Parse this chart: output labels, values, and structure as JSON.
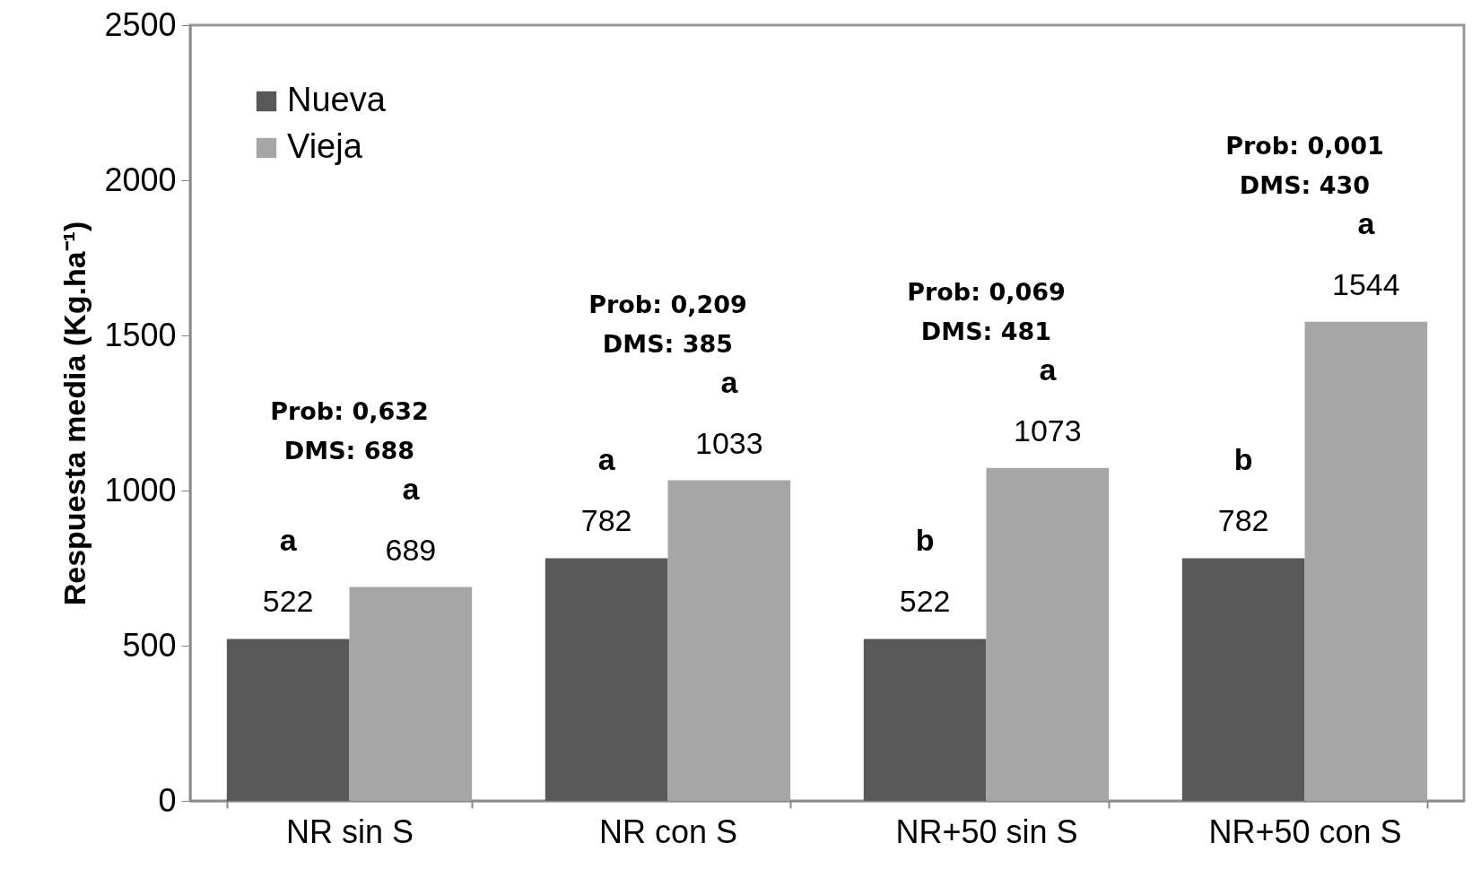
{
  "chart_data": {
    "type": "bar",
    "ylabel": "Respuesta media (Kg.ha⁻¹)",
    "categories": [
      "NR sin S",
      "NR con S",
      "NR+50 sin S",
      "NR+50 con S"
    ],
    "series": [
      {
        "name": "Nueva",
        "color": "#595959",
        "values": [
          522,
          782,
          522,
          782
        ]
      },
      {
        "name": "Vieja",
        "color": "#a6a6a6",
        "values": [
          689,
          1033,
          1073,
          1544
        ]
      }
    ],
    "ylim": [
      0,
      2500
    ],
    "yticks": [
      0,
      500,
      1000,
      1500,
      2000,
      2500
    ],
    "data_labels": true,
    "legend": "top left",
    "annotations": [
      "Prob: 0,632\nDMS: 688",
      "Prob: 0,209\nDMS: 385",
      "Prob: 0,069\nDMS: 481",
      "Prob: 0,001\nDMS: 430",
      "a",
      "a",
      "a",
      "a",
      "b",
      "a",
      "b",
      "a"
    ]
  }
}
